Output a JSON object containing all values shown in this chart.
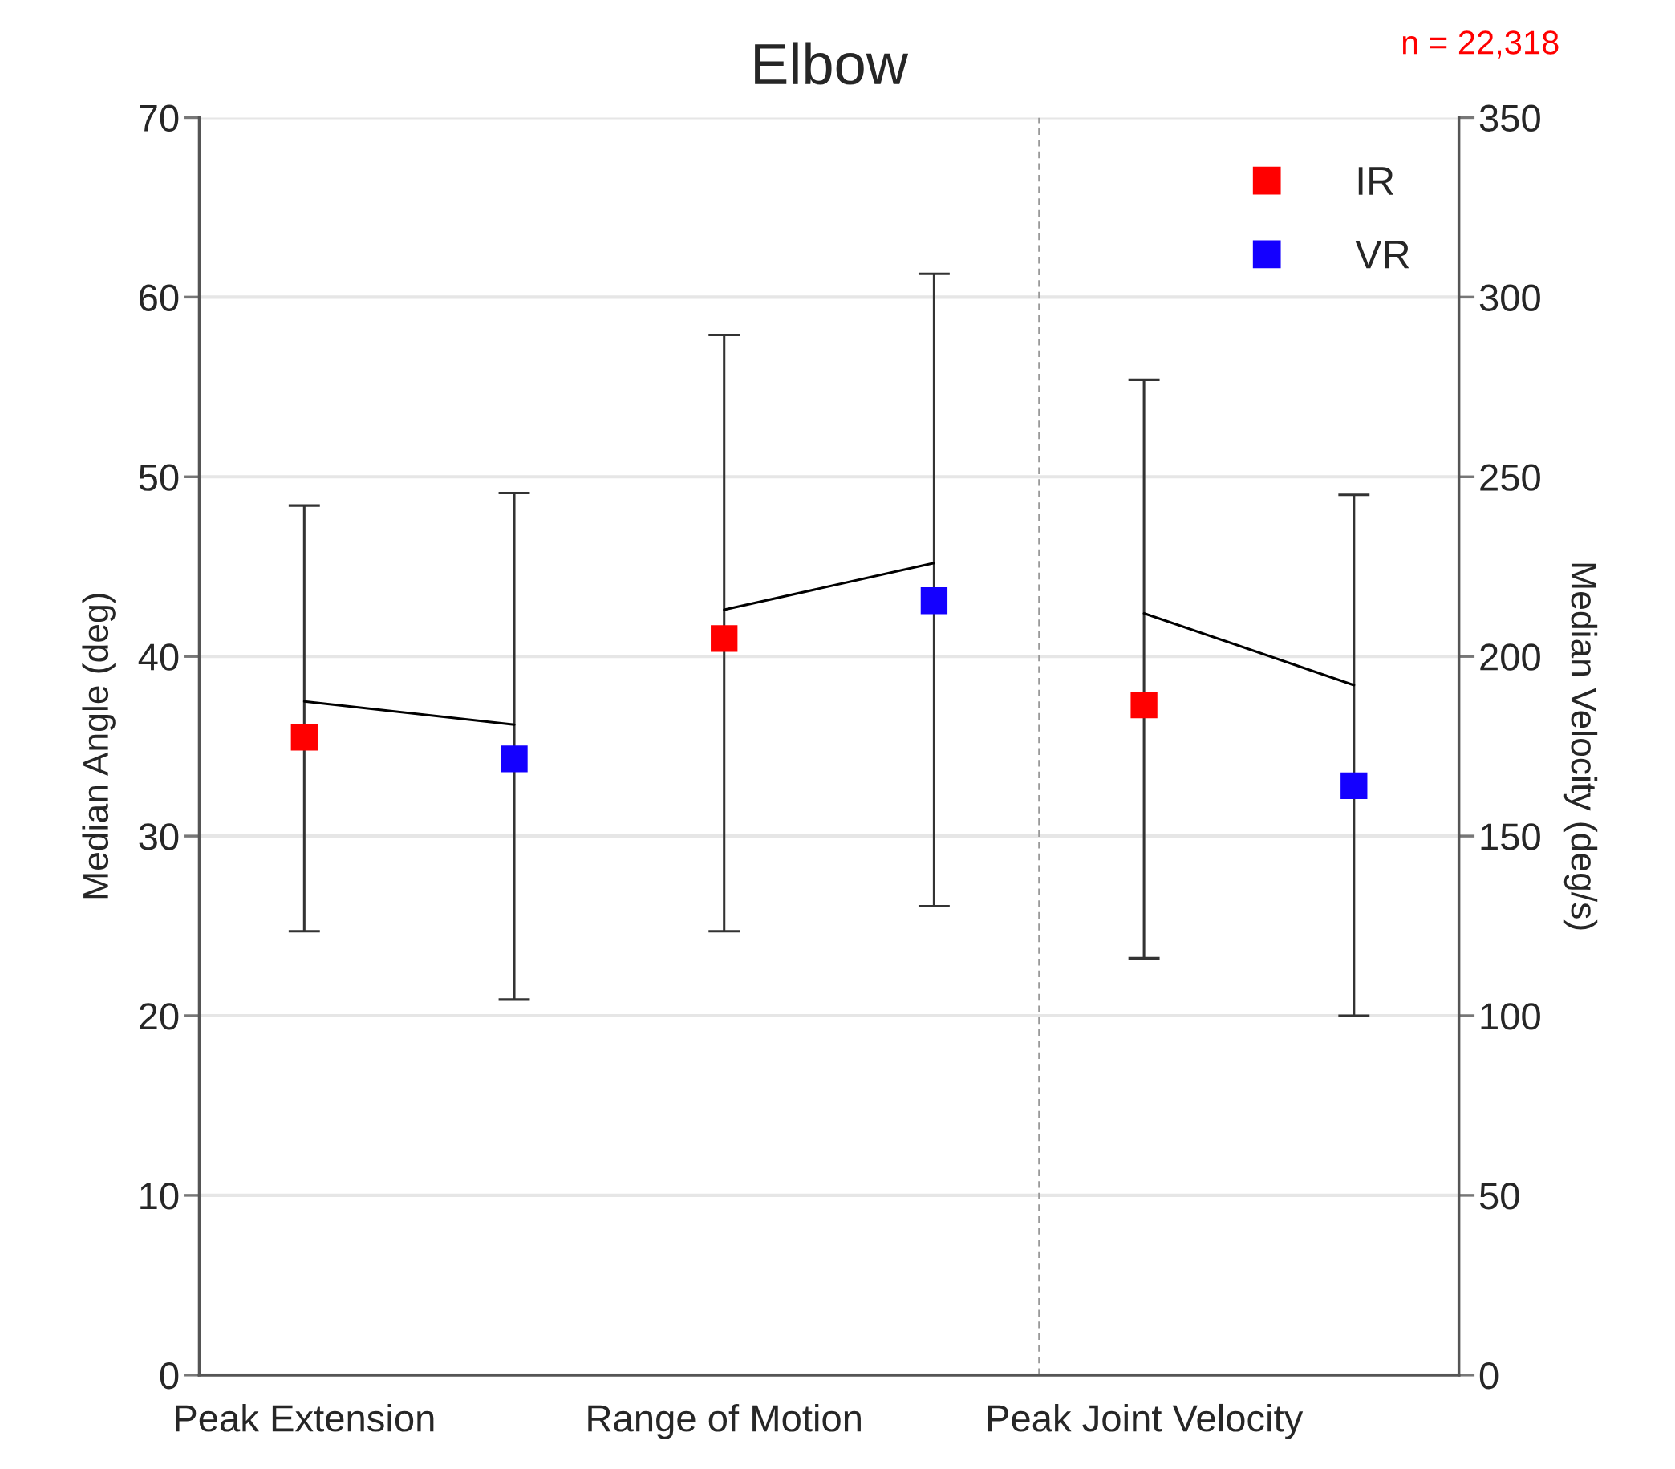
{
  "chart_data": {
    "type": "scatter",
    "title": "Elbow",
    "ylabel": "Median Angle (deg)",
    "y2label": "Median Velocity (deg/s)",
    "annotations": [
      "n = 22,318"
    ],
    "categories": [
      "Peak Extension",
      null,
      "Range of Motion",
      null,
      "Peak Joint Velocity",
      null
    ],
    "ylim": [
      0,
      70
    ],
    "yticks": [
      0,
      10,
      20,
      30,
      40,
      50,
      60,
      70
    ],
    "y2lim": [
      0,
      350
    ],
    "y2ticks": [
      0,
      50,
      100,
      150,
      200,
      250,
      300,
      350
    ],
    "grid": "y",
    "legend": "top right",
    "marker": "square",
    "series": [
      {
        "name": "IR",
        "color": "#ff0000",
        "values": [
          35.5,
          null,
          41.0,
          null,
          null,
          null
        ],
        "errors": [
          [
            24.7,
            48.4
          ],
          null,
          [
            24.7,
            57.9
          ],
          null,
          null,
          null
        ]
      },
      {
        "name": "VR",
        "color": "#1400ff",
        "values": [
          null,
          34.3,
          null,
          43.1,
          null,
          null
        ],
        "errors": [
          null,
          [
            20.9,
            49.1
          ],
          null,
          [
            26.1,
            61.3
          ],
          null,
          null
        ]
      },
      {
        "color": "#ff0000",
        "axis": "y2",
        "values": [
          null,
          null,
          null,
          null,
          186.5,
          null
        ],
        "errors": [
          null,
          null,
          null,
          null,
          [
            116,
            277
          ],
          null
        ]
      },
      {
        "color": "#1400ff",
        "axis": "y2",
        "values": [
          null,
          null,
          null,
          null,
          null,
          164
        ],
        "errors": [
          null,
          null,
          null,
          null,
          null,
          [
            100,
            245
          ]
        ]
      },
      {
        "type": "line",
        "color": "#000000",
        "marker": "none",
        "values": [
          37.5,
          36.2,
          null,
          null,
          null,
          null
        ]
      },
      {
        "type": "line",
        "color": "#000000",
        "marker": "none",
        "values": [
          null,
          null,
          42.6,
          45.2,
          null,
          null
        ]
      },
      {
        "type": "line",
        "color": "#000000",
        "marker": "none",
        "axis": "y2",
        "values": [
          null,
          null,
          null,
          null,
          212,
          192
        ]
      }
    ]
  }
}
